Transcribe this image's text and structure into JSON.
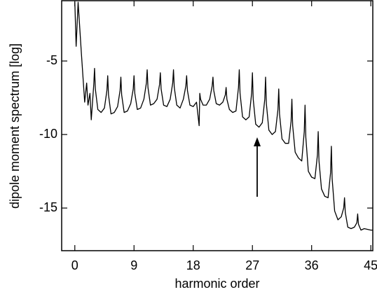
{
  "chart_data": {
    "type": "line",
    "x_label": "harmonic order",
    "y_label": "dipole moment spectrum [log]",
    "color": "#000000",
    "xlim": [
      -2,
      45.3
    ],
    "ylim": [
      -17.9,
      -0.9
    ],
    "xticks": [
      0,
      9,
      18,
      27,
      36,
      45
    ],
    "yticks": [
      -15,
      -10,
      -5
    ],
    "x": [
      0,
      0.2,
      0.5,
      1.0,
      1.5,
      1.8,
      2.0,
      2.3,
      2.5,
      2.88,
      3,
      3.12,
      3.5,
      4,
      4.5,
      4.88,
      5,
      5.12,
      5.5,
      6,
      6.5,
      6.88,
      7,
      7.12,
      7.5,
      8,
      8.5,
      8.88,
      9,
      9.12,
      9.5,
      10,
      10.5,
      10.88,
      11,
      11.12,
      11.5,
      12,
      12.5,
      12.88,
      13,
      13.12,
      13.5,
      14,
      14.5,
      14.88,
      15,
      15.12,
      15.5,
      16,
      16.5,
      16.88,
      17,
      17.12,
      17.5,
      18,
      18.5,
      18.9,
      19,
      19.12,
      19.5,
      20,
      20.5,
      20.88,
      21,
      21.12,
      21.5,
      22,
      22.5,
      22.88,
      23,
      23.12,
      23.5,
      24,
      24.5,
      24.88,
      25,
      25.12,
      25.5,
      26,
      26.5,
      26.88,
      27,
      27.12,
      27.5,
      28,
      28.5,
      28.88,
      29,
      29.12,
      29.5,
      30,
      30.5,
      30.88,
      31,
      31.12,
      31.5,
      32,
      32.5,
      32.88,
      33,
      33.12,
      33.5,
      34,
      34.5,
      34.88,
      35,
      35.12,
      35.5,
      36,
      36.5,
      36.88,
      37,
      37.12,
      37.5,
      38,
      38.5,
      38.88,
      39,
      39.12,
      39.5,
      40,
      40.5,
      40.88,
      41,
      41.12,
      41.5,
      42,
      42.5,
      42.88,
      43,
      43.12,
      43.5,
      44,
      45,
      45.3
    ],
    "values": [
      -1.0,
      -4.0,
      -1.0,
      -4.5,
      -7.8,
      -6.5,
      -8.0,
      -7.2,
      -9.0,
      -6.6,
      -5.5,
      -6.9,
      -8.3,
      -8.5,
      -8.2,
      -7.0,
      -6.0,
      -7.3,
      -8.6,
      -8.5,
      -8.1,
      -7.0,
      -6.1,
      -7.3,
      -8.5,
      -8.4,
      -7.9,
      -6.9,
      -6.0,
      -7.2,
      -8.3,
      -8.2,
      -7.6,
      -6.5,
      -5.6,
      -6.8,
      -8.0,
      -7.9,
      -7.6,
      -6.6,
      -5.8,
      -6.9,
      -8.0,
      -8.1,
      -7.6,
      -6.5,
      -5.6,
      -6.8,
      -8.0,
      -8.2,
      -7.6,
      -6.7,
      -6.0,
      -7.0,
      -8.0,
      -8.1,
      -7.8,
      -9.4,
      -7.2,
      -7.6,
      -8.0,
      -8.0,
      -7.6,
      -6.7,
      -6.1,
      -7.0,
      -7.9,
      -8.0,
      -7.8,
      -7.3,
      -6.8,
      -7.6,
      -8.3,
      -8.5,
      -8.4,
      -6.8,
      -5.6,
      -7.2,
      -8.8,
      -9.0,
      -8.8,
      -7.2,
      -5.8,
      -7.6,
      -9.3,
      -9.5,
      -9.2,
      -7.6,
      -6.1,
      -7.9,
      -9.7,
      -10.0,
      -9.8,
      -8.3,
      -6.9,
      -8.6,
      -10.3,
      -10.6,
      -10.6,
      -9.1,
      -7.6,
      -9.4,
      -11.2,
      -11.6,
      -11.8,
      -9.8,
      -8.0,
      -10.2,
      -12.5,
      -12.9,
      -13.0,
      -11.4,
      -9.8,
      -11.8,
      -13.7,
      -14.2,
      -14.3,
      -12.6,
      -10.8,
      -13.0,
      -15.2,
      -15.8,
      -15.6,
      -15.0,
      -14.3,
      -15.3,
      -16.3,
      -16.4,
      -16.3,
      -16.0,
      -15.4,
      -16.1,
      -16.5,
      -16.4,
      -16.5,
      -16.5
    ]
  }
}
